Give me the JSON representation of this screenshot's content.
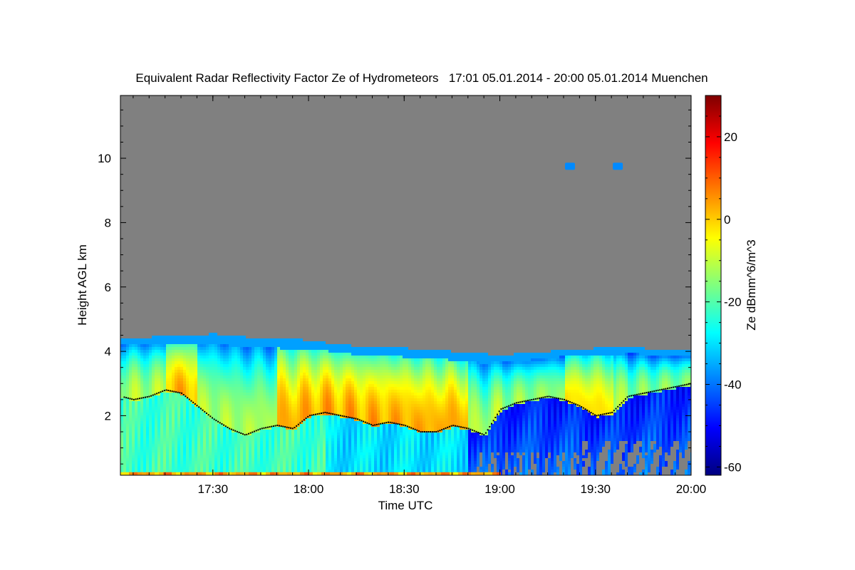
{
  "chart_data": {
    "type": "heatmap",
    "title": "Equivalent Radar Reflectivity Factor Ze of Hydrometeors   17:01 05.01.2014 - 20:00 05.01.2014 Muenchen",
    "xlabel": "Time UTC",
    "ylabel": "Height AGL km",
    "colorbar_label": "Ze dBmm^6/m^3",
    "xlim_minutes_utc": [
      1021,
      1200
    ],
    "ylim_km": [
      0.15,
      11.95
    ],
    "clim_dbz": [
      -62,
      30
    ],
    "x_ticks": [
      {
        "label": "17:30",
        "minutes": 1050
      },
      {
        "label": "18:00",
        "minutes": 1080
      },
      {
        "label": "18:30",
        "minutes": 1110
      },
      {
        "label": "19:00",
        "minutes": 1140
      },
      {
        "label": "19:30",
        "minutes": 1170
      },
      {
        "label": "20:00",
        "minutes": 1200
      }
    ],
    "y_ticks": [
      {
        "label": "2",
        "value": 2
      },
      {
        "label": "4",
        "value": 4
      },
      {
        "label": "6",
        "value": 6
      },
      {
        "label": "8",
        "value": 8
      },
      {
        "label": "10",
        "value": 10
      }
    ],
    "colorbar_ticks": [
      {
        "label": "20",
        "value": 20
      },
      {
        "label": "0",
        "value": 0
      },
      {
        "label": "-20",
        "value": -20
      },
      {
        "label": "-40",
        "value": -40
      },
      {
        "label": "-60",
        "value": -60
      }
    ],
    "colormap": [
      "#00007f",
      "#0000ff",
      "#007fff",
      "#00ffff",
      "#7fff7f",
      "#ffff00",
      "#ff7f00",
      "#ff0000",
      "#7f0000"
    ],
    "no_data_color": "#808080",
    "cloud_top_km": {
      "minutes": [
        1021,
        1030,
        1040,
        1050,
        1060,
        1070,
        1080,
        1090,
        1100,
        1110,
        1120,
        1130,
        1140,
        1150,
        1160,
        1170,
        1180,
        1190,
        1200
      ],
      "values": [
        4.4,
        4.4,
        4.45,
        4.5,
        4.4,
        4.35,
        4.3,
        4.15,
        4.1,
        4.05,
        4.0,
        3.9,
        3.85,
        3.9,
        4.0,
        4.05,
        4.1,
        4.0,
        4.0
      ]
    },
    "melting_layer_km": {
      "minutes": [
        1021,
        1025,
        1030,
        1035,
        1040,
        1045,
        1050,
        1055,
        1060,
        1065,
        1070,
        1075,
        1080,
        1085,
        1090,
        1095,
        1100,
        1105,
        1110,
        1115,
        1120,
        1125,
        1130,
        1135,
        1140,
        1145,
        1150,
        1155,
        1160,
        1165,
        1170,
        1175,
        1180,
        1185,
        1190,
        1195,
        1200
      ],
      "values": [
        2.6,
        2.5,
        2.6,
        2.8,
        2.7,
        2.3,
        1.9,
        1.6,
        1.4,
        1.6,
        1.7,
        1.6,
        2.0,
        2.1,
        2.0,
        1.9,
        1.7,
        1.8,
        1.7,
        1.5,
        1.5,
        1.7,
        1.6,
        1.4,
        2.2,
        2.4,
        2.5,
        2.6,
        2.5,
        2.3,
        2.0,
        2.1,
        2.6,
        2.7,
        2.8,
        2.9,
        3.0
      ]
    },
    "features": [
      {
        "note": "near-surface clutter band",
        "height_km": 0.2
      },
      {
        "note": "isolated echoes at high altitude",
        "minutes": [
          1162,
          1177
        ],
        "height_km": 9.75,
        "ze_dbz": -38
      }
    ]
  }
}
